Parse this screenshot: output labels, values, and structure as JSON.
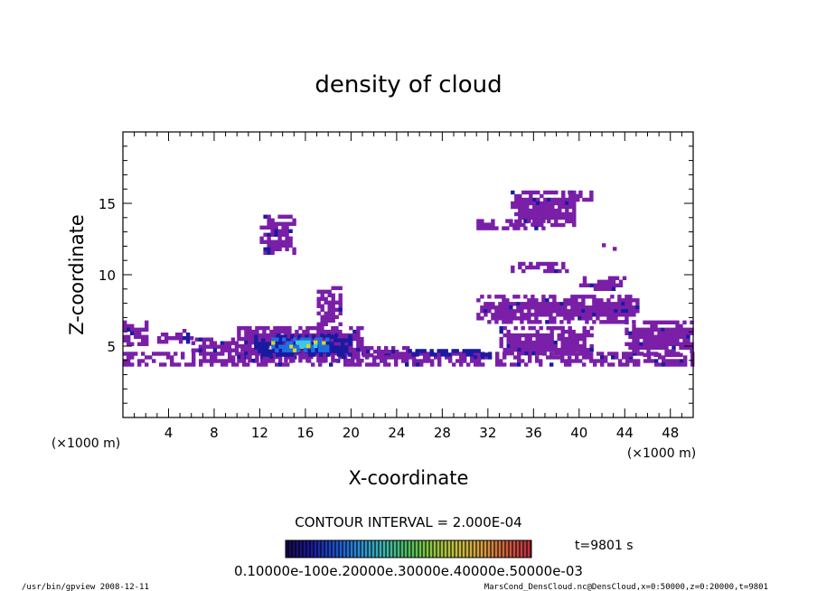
{
  "chart_data": {
    "type": "heatmap",
    "title": "density of cloud",
    "xlabel": "X-coordinate",
    "ylabel": "Z-coordinate",
    "x_unit": "(×1000 m)",
    "z_unit": "(×1000 m)",
    "xlim": [
      0,
      50
    ],
    "ylim": [
      0,
      20
    ],
    "x_ticks": [
      4,
      8,
      12,
      16,
      20,
      24,
      28,
      32,
      36,
      40,
      44,
      48
    ],
    "y_ticks": [
      5,
      10,
      15
    ],
    "contour_interval": "CONTOUR INTERVAL = 2.000E-04",
    "time_label": "t=9801 s",
    "colorbar_label": "0.10000e-100e.20000e.30000e.40000e.50000e-03",
    "footer_left": "/usr/bin/gpview  2008-12-11",
    "footer_right": "MarsCond_DensCloud.nc@DensCloud,x=0:50000,z=0:20000,t=9801",
    "colors": {
      "low": "#7a1fa8",
      "mid_low": "#1a1aa0",
      "mid": "#1e6ee0",
      "mid_high": "#3ac8e8",
      "high": "#d8d820"
    },
    "colorbar_colors": [
      "#160a50",
      "#1a1a9a",
      "#2050d0",
      "#2a90d8",
      "#40b8b0",
      "#50c060",
      "#90c840",
      "#c8c040",
      "#d8a040",
      "#d06040",
      "#c03040"
    ],
    "regions": [
      {
        "x": [
          0,
          50
        ],
        "z": [
          3.8,
          4.6
        ],
        "level": 1
      },
      {
        "x": [
          0,
          2
        ],
        "z": [
          5.2,
          6.8
        ],
        "level": 1
      },
      {
        "x": [
          3,
          6
        ],
        "z": [
          5.2,
          6.2
        ],
        "level": 1
      },
      {
        "x": [
          6,
          10
        ],
        "z": [
          4.6,
          5.6
        ],
        "level": 1
      },
      {
        "x": [
          10,
          21
        ],
        "z": [
          4.0,
          6.4
        ],
        "level": 1
      },
      {
        "x": [
          11.5,
          20
        ],
        "z": [
          4.3,
          5.8
        ],
        "level": 2
      },
      {
        "x": [
          13,
          18
        ],
        "z": [
          4.6,
          5.6
        ],
        "level": 3
      },
      {
        "x": [
          14.5,
          17
        ],
        "z": [
          4.9,
          5.4
        ],
        "level": 4
      },
      {
        "x": [
          17,
          19
        ],
        "z": [
          6.5,
          9.2
        ],
        "level": 1
      },
      {
        "x": [
          12,
          15
        ],
        "z": [
          11.5,
          14.2
        ],
        "level": 1
      },
      {
        "x": [
          21,
          25
        ],
        "z": [
          4.4,
          5.0
        ],
        "level": 1
      },
      {
        "x": [
          25,
          32
        ],
        "z": [
          4.3,
          4.8
        ],
        "level": 2
      },
      {
        "x": [
          31,
          45
        ],
        "z": [
          6.8,
          8.6
        ],
        "level": 1
      },
      {
        "x": [
          34,
          39
        ],
        "z": [
          10.2,
          10.9
        ],
        "level": 1
      },
      {
        "x": [
          40,
          44
        ],
        "z": [
          8.9,
          9.9
        ],
        "level": 1
      },
      {
        "x": [
          33,
          41
        ],
        "z": [
          4.5,
          6.4
        ],
        "level": 1
      },
      {
        "x": [
          44,
          50
        ],
        "z": [
          4.5,
          6.8
        ],
        "level": 1
      },
      {
        "x": [
          34,
          40
        ],
        "z": [
          13.6,
          15.9
        ],
        "level": 1
      },
      {
        "x": [
          31,
          37
        ],
        "z": [
          13.2,
          13.9
        ],
        "level": 1
      },
      {
        "x": [
          39,
          41
        ],
        "z": [
          15.3,
          15.9
        ],
        "level": 1
      },
      {
        "x": [
          42,
          43
        ],
        "z": [
          11.8,
          12.2
        ],
        "level": 1
      }
    ]
  }
}
